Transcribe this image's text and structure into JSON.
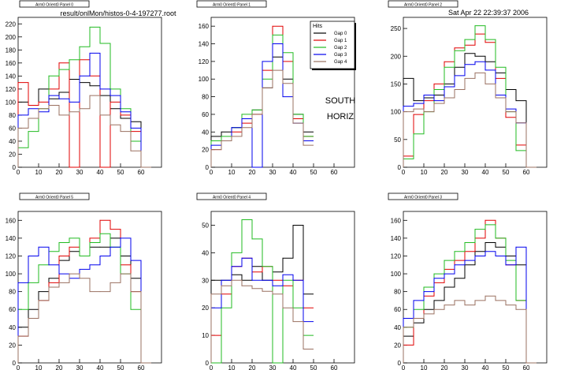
{
  "header": {
    "filename": "result/onlMon/histos-0-4-197277.root",
    "datetime": "Sat Apr 22 22:39:37 2006"
  },
  "annotations": [
    "SOUTH",
    "HORIZ"
  ],
  "legend": {
    "title": "Hits",
    "entries": [
      "Gap 0",
      "Gap 1",
      "Gap 2",
      "Gap 3",
      "Gap 4"
    ]
  },
  "colors": {
    "Gap 0": "#000000",
    "Gap 1": "#e00000",
    "Gap 2": "#22bb22",
    "Gap 3": "#0000ee",
    "Gap 4": "#9a7060",
    "axis": "#000000",
    "background": "#ffffff"
  },
  "chart_data": [
    {
      "type": "line",
      "title": "Arm0 Orient0 Panel 0",
      "xlim": [
        0,
        70
      ],
      "ylim": [
        0,
        230
      ],
      "xticks": [
        0,
        10,
        20,
        30,
        40,
        50,
        60
      ],
      "yticks": [
        0,
        20,
        40,
        60,
        80,
        100,
        120,
        140,
        160,
        180,
        200,
        220
      ],
      "x": [
        0,
        5,
        10,
        15,
        20,
        25,
        30,
        35,
        40,
        45,
        50,
        55,
        60
      ],
      "series": [
        {
          "name": "Gap 0",
          "values": [
            100,
            95,
            120,
            105,
            115,
            135,
            130,
            125,
            110,
            90,
            75,
            70,
            0
          ]
        },
        {
          "name": "Gap 1",
          "values": [
            130,
            95,
            100,
            120,
            160,
            0,
            165,
            140,
            0,
            100,
            80,
            55,
            0
          ]
        },
        {
          "name": "Gap 2",
          "values": [
            30,
            55,
            90,
            140,
            150,
            165,
            185,
            215,
            190,
            120,
            90,
            40,
            0
          ]
        },
        {
          "name": "Gap 3",
          "values": [
            80,
            90,
            85,
            110,
            105,
            100,
            140,
            175,
            120,
            110,
            85,
            60,
            0
          ]
        },
        {
          "name": "Gap 4",
          "values": [
            60,
            75,
            90,
            95,
            80,
            85,
            90,
            110,
            80,
            65,
            55,
            25,
            0
          ]
        }
      ]
    },
    {
      "type": "line",
      "title": "Arm0 Orient0 Panel 1",
      "xlim": [
        0,
        70
      ],
      "ylim": [
        0,
        170
      ],
      "xticks": [
        0,
        10,
        20,
        30,
        40,
        50,
        60
      ],
      "yticks": [
        0,
        20,
        40,
        60,
        80,
        100,
        120,
        140,
        160
      ],
      "x": [
        0,
        5,
        10,
        15,
        20,
        25,
        30,
        35,
        40,
        45
      ],
      "series": [
        {
          "name": "Gap 0",
          "values": [
            35,
            40,
            45,
            55,
            65,
            90,
            125,
            100,
            60,
            40
          ]
        },
        {
          "name": "Gap 1",
          "values": [
            20,
            30,
            40,
            50,
            60,
            110,
            160,
            120,
            55,
            35
          ]
        },
        {
          "name": "Gap 2",
          "values": [
            30,
            35,
            45,
            60,
            65,
            100,
            150,
            130,
            60,
            35
          ]
        },
        {
          "name": "Gap 3",
          "values": [
            25,
            30,
            45,
            55,
            0,
            120,
            140,
            80,
            50,
            30
          ]
        },
        {
          "name": "Gap 4",
          "values": [
            20,
            30,
            35,
            45,
            60,
            90,
            110,
            95,
            50,
            25
          ]
        }
      ]
    },
    {
      "type": "line",
      "title": "Arm0 Orient0 Panel 2",
      "xlim": [
        0,
        70
      ],
      "ylim": [
        0,
        270
      ],
      "xticks": [
        0,
        10,
        20,
        30,
        40,
        50,
        60
      ],
      "yticks": [
        0,
        50,
        100,
        150,
        200,
        250
      ],
      "x": [
        0,
        5,
        10,
        15,
        20,
        25,
        30,
        35,
        40,
        45,
        50,
        55,
        60
      ],
      "series": [
        {
          "name": "Gap 0",
          "values": [
            160,
            120,
            125,
            130,
            150,
            180,
            205,
            200,
            190,
            170,
            140,
            120,
            0
          ]
        },
        {
          "name": "Gap 1",
          "values": [
            20,
            95,
            120,
            150,
            190,
            215,
            220,
            240,
            225,
            160,
            90,
            40,
            0
          ]
        },
        {
          "name": "Gap 2",
          "values": [
            15,
            60,
            100,
            140,
            180,
            210,
            230,
            255,
            230,
            180,
            100,
            30,
            0
          ]
        },
        {
          "name": "Gap 3",
          "values": [
            110,
            115,
            130,
            120,
            145,
            165,
            185,
            190,
            175,
            130,
            105,
            80,
            0
          ]
        },
        {
          "name": "Gap 4",
          "values": [
            100,
            105,
            100,
            115,
            125,
            140,
            160,
            170,
            150,
            125,
            100,
            80,
            0
          ]
        }
      ]
    },
    {
      "type": "line",
      "title": "Arm0 Orient0 Panel 5",
      "xlim": [
        0,
        70
      ],
      "ylim": [
        0,
        170
      ],
      "xticks": [
        0,
        10,
        20,
        30,
        40,
        50,
        60
      ],
      "yticks": [
        0,
        20,
        40,
        60,
        80,
        100,
        120,
        140,
        160
      ],
      "x": [
        0,
        5,
        10,
        15,
        20,
        25,
        30,
        35,
        40,
        45,
        50,
        55,
        60
      ],
      "series": [
        {
          "name": "Gap 0",
          "values": [
            40,
            60,
            80,
            95,
            115,
            125,
            120,
            130,
            130,
            140,
            120,
            95,
            0
          ]
        },
        {
          "name": "Gap 1",
          "values": [
            30,
            50,
            70,
            90,
            120,
            130,
            120,
            140,
            160,
            150,
            110,
            80,
            0
          ]
        },
        {
          "name": "Gap 2",
          "values": [
            60,
            90,
            110,
            125,
            135,
            140,
            120,
            135,
            145,
            130,
            100,
            60,
            0
          ]
        },
        {
          "name": "Gap 3",
          "values": [
            90,
            120,
            130,
            110,
            100,
            95,
            105,
            110,
            120,
            130,
            140,
            115,
            0
          ]
        },
        {
          "name": "Gap 4",
          "values": [
            30,
            50,
            70,
            85,
            90,
            100,
            95,
            80,
            80,
            90,
            100,
            80,
            0
          ]
        }
      ]
    },
    {
      "type": "line",
      "title": "Arm0 Orient0 Panel 4",
      "xlim": [
        0,
        70
      ],
      "ylim": [
        0,
        55
      ],
      "xticks": [
        0,
        10,
        20,
        30,
        40,
        50,
        60
      ],
      "yticks": [
        0,
        10,
        20,
        30,
        40,
        50
      ],
      "x": [
        0,
        5,
        10,
        15,
        20,
        25,
        30,
        35,
        40,
        45
      ],
      "series": [
        {
          "name": "Gap 0",
          "values": [
            30,
            30,
            32,
            30,
            35,
            30,
            33,
            38,
            50,
            25
          ]
        },
        {
          "name": "Gap 1",
          "values": [
            10,
            25,
            35,
            38,
            33,
            35,
            30,
            28,
            30,
            20
          ]
        },
        {
          "name": "Gap 2",
          "values": [
            0,
            20,
            40,
            52,
            45,
            35,
            0,
            30,
            20,
            10
          ]
        },
        {
          "name": "Gap 3",
          "values": [
            20,
            30,
            35,
            38,
            30,
            30,
            28,
            32,
            30,
            15
          ]
        },
        {
          "name": "Gap 4",
          "values": [
            25,
            28,
            30,
            28,
            27,
            26,
            25,
            20,
            15,
            5
          ]
        }
      ]
    },
    {
      "type": "line",
      "title": "Arm0 Orient0 Panel 3",
      "xlim": [
        0,
        70
      ],
      "ylim": [
        0,
        170
      ],
      "xticks": [
        0,
        10,
        20,
        30,
        40,
        50,
        60
      ],
      "yticks": [
        0,
        20,
        40,
        60,
        80,
        100,
        120,
        140,
        160
      ],
      "x": [
        0,
        5,
        10,
        15,
        20,
        25,
        30,
        35,
        40,
        45,
        50,
        55,
        60
      ],
      "series": [
        {
          "name": "Gap 0",
          "values": [
            30,
            45,
            60,
            70,
            85,
            95,
            110,
            125,
            135,
            130,
            120,
            110,
            0
          ]
        },
        {
          "name": "Gap 1",
          "values": [
            20,
            50,
            75,
            90,
            105,
            115,
            125,
            140,
            160,
            140,
            110,
            70,
            0
          ]
        },
        {
          "name": "Gap 2",
          "values": [
            40,
            60,
            85,
            100,
            115,
            125,
            135,
            150,
            155,
            140,
            115,
            70,
            0
          ]
        },
        {
          "name": "Gap 3",
          "values": [
            50,
            70,
            80,
            95,
            100,
            110,
            115,
            120,
            125,
            120,
            110,
            130,
            0
          ]
        },
        {
          "name": "Gap 4",
          "values": [
            40,
            50,
            55,
            60,
            65,
            70,
            65,
            70,
            75,
            70,
            65,
            60,
            0
          ]
        }
      ]
    }
  ]
}
